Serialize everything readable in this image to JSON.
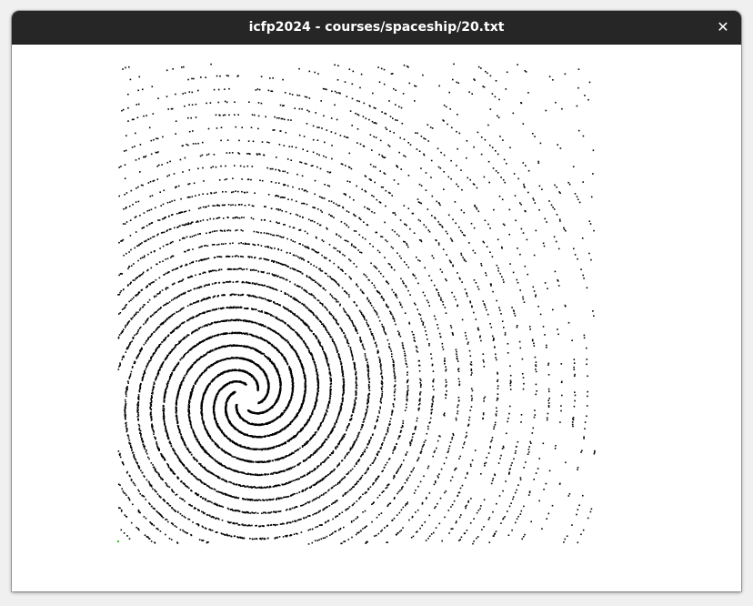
{
  "window": {
    "title": "icfp2024 - courses/spaceship/20.txt",
    "close_glyph": "✕",
    "close_icon": "close-icon"
  },
  "colors": {
    "titlebar": "#262626",
    "title_text": "#ffffff",
    "canvas_bg": "#ffffff",
    "dot": "#000000",
    "start_marker": "#22cc22"
  },
  "spiral": {
    "arms": 6,
    "style": "dotted"
  }
}
